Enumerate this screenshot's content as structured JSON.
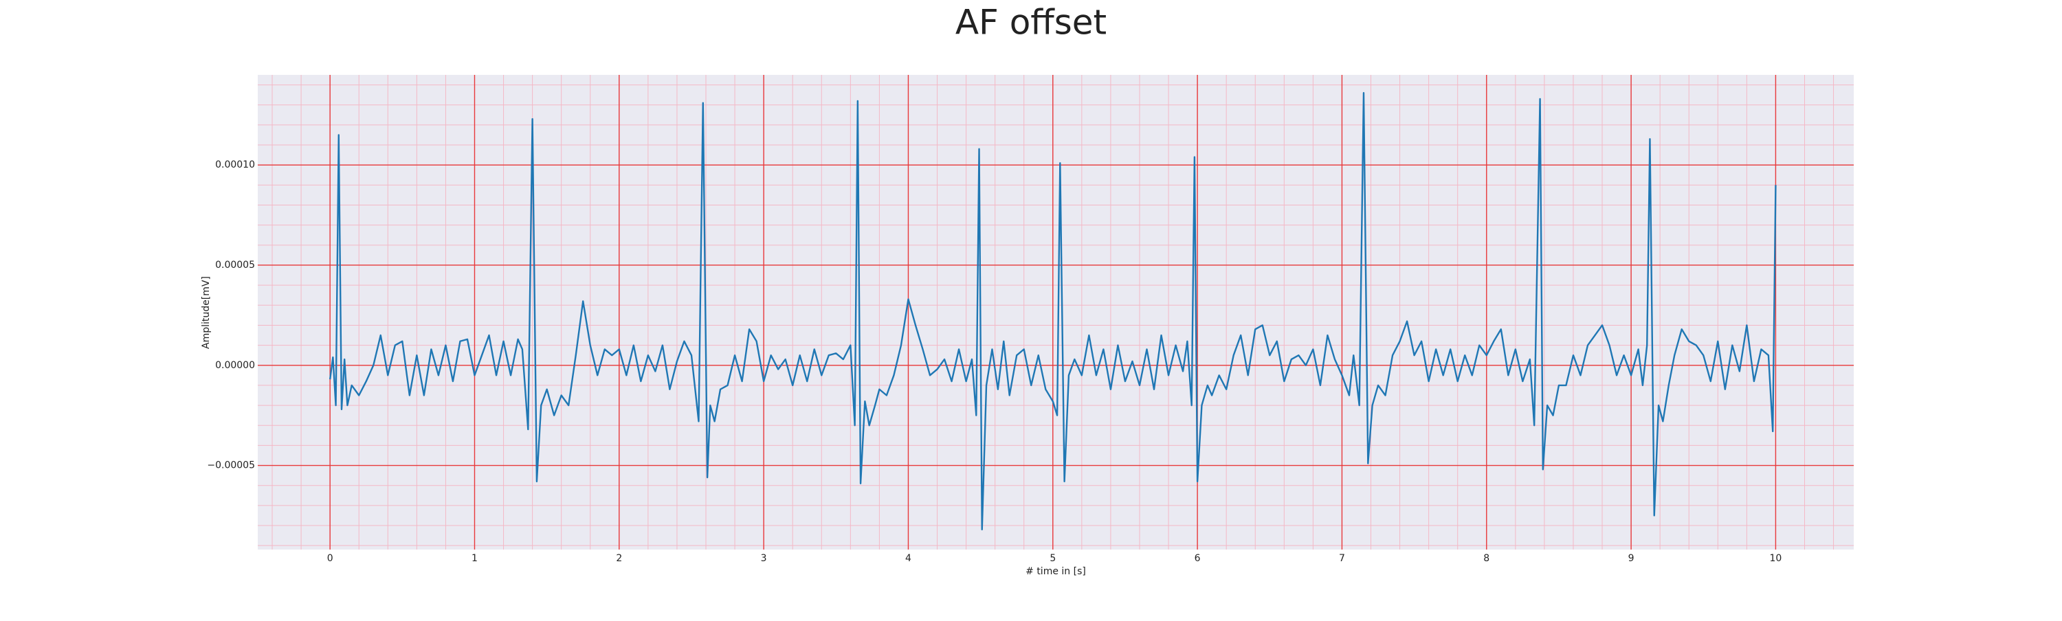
{
  "chart_data": {
    "type": "line",
    "title": "AF offset",
    "x_label": "# time in [s]",
    "y_label": "Amplitude[mV]",
    "x": [
      0,
      0.02,
      0.04,
      0.06,
      0.08,
      0.1,
      0.12,
      0.15,
      0.2,
      0.25,
      0.3,
      0.35,
      0.4,
      0.45,
      0.5,
      0.55,
      0.6,
      0.65,
      0.7,
      0.75,
      0.8,
      0.85,
      0.9,
      0.95,
      1.0,
      1.05,
      1.1,
      1.15,
      1.2,
      1.25,
      1.3,
      1.33,
      1.37,
      1.4,
      1.43,
      1.46,
      1.5,
      1.55,
      1.6,
      1.65,
      1.7,
      1.75,
      1.8,
      1.85,
      1.9,
      1.95,
      2.0,
      2.05,
      2.1,
      2.15,
      2.2,
      2.25,
      2.3,
      2.35,
      2.4,
      2.45,
      2.5,
      2.55,
      2.58,
      2.61,
      2.63,
      2.66,
      2.7,
      2.75,
      2.8,
      2.85,
      2.9,
      2.95,
      3.0,
      3.05,
      3.1,
      3.15,
      3.2,
      3.25,
      3.3,
      3.35,
      3.4,
      3.45,
      3.5,
      3.55,
      3.6,
      3.63,
      3.65,
      3.67,
      3.7,
      3.73,
      3.77,
      3.8,
      3.85,
      3.9,
      3.95,
      4.0,
      4.05,
      4.1,
      4.15,
      4.2,
      4.25,
      4.3,
      4.35,
      4.4,
      4.44,
      4.47,
      4.49,
      4.51,
      4.54,
      4.58,
      4.62,
      4.66,
      4.7,
      4.75,
      4.8,
      4.85,
      4.9,
      4.95,
      5.0,
      5.03,
      5.05,
      5.08,
      5.11,
      5.15,
      5.2,
      5.25,
      5.3,
      5.35,
      5.4,
      5.45,
      5.5,
      5.55,
      5.6,
      5.65,
      5.7,
      5.75,
      5.8,
      5.85,
      5.9,
      5.93,
      5.96,
      5.98,
      6.0,
      6.03,
      6.07,
      6.1,
      6.15,
      6.2,
      6.25,
      6.3,
      6.35,
      6.4,
      6.45,
      6.5,
      6.55,
      6.6,
      6.65,
      6.7,
      6.75,
      6.8,
      6.85,
      6.9,
      6.95,
      7.0,
      7.05,
      7.08,
      7.12,
      7.15,
      7.18,
      7.21,
      7.25,
      7.3,
      7.35,
      7.4,
      7.45,
      7.5,
      7.55,
      7.6,
      7.65,
      7.7,
      7.75,
      7.8,
      7.85,
      7.9,
      7.95,
      8.0,
      8.05,
      8.1,
      8.15,
      8.2,
      8.25,
      8.3,
      8.33,
      8.37,
      8.39,
      8.42,
      8.46,
      8.5,
      8.55,
      8.6,
      8.65,
      8.7,
      8.75,
      8.8,
      8.85,
      8.9,
      8.95,
      9.0,
      9.05,
      9.08,
      9.11,
      9.13,
      9.16,
      9.19,
      9.22,
      9.26,
      9.3,
      9.35,
      9.4,
      9.45,
      9.5,
      9.55,
      9.6,
      9.65,
      9.7,
      9.75,
      9.8,
      9.85,
      9.9,
      9.95,
      9.98,
      10.0
    ],
    "series": [
      {
        "name": "Amplitude",
        "color": "#1f77b4",
        "values": [
          -7e-06,
          4e-06,
          -2e-05,
          0.000115,
          -2.2e-05,
          3e-06,
          -2e-05,
          -1e-05,
          -1.5e-05,
          -8e-06,
          0,
          1.5e-05,
          -5e-06,
          1e-05,
          1.2e-05,
          -1.5e-05,
          5e-06,
          -1.5e-05,
          8e-06,
          -5e-06,
          1e-05,
          -8e-06,
          1.2e-05,
          1.3e-05,
          -5e-06,
          5e-06,
          1.5e-05,
          -5e-06,
          1.2e-05,
          -5e-06,
          1.3e-05,
          8e-06,
          -3.2e-05,
          0.000123,
          -5.8e-05,
          -2e-05,
          -1.2e-05,
          -2.5e-05,
          -1.5e-05,
          -2e-05,
          5e-06,
          3.2e-05,
          1e-05,
          -5e-06,
          8e-06,
          5e-06,
          8e-06,
          -5e-06,
          1e-05,
          -8e-06,
          5e-06,
          -3e-06,
          1e-05,
          -1.2e-05,
          2e-06,
          1.2e-05,
          5e-06,
          -2.8e-05,
          0.000131,
          -5.6e-05,
          -2e-05,
          -2.8e-05,
          -1.2e-05,
          -1e-05,
          5e-06,
          -8e-06,
          1.8e-05,
          1.2e-05,
          -8e-06,
          5e-06,
          -2e-06,
          3e-06,
          -1e-05,
          5e-06,
          -8e-06,
          8e-06,
          -5e-06,
          5e-06,
          6e-06,
          3e-06,
          1e-05,
          -3e-05,
          0.000132,
          -5.9e-05,
          -1.8e-05,
          -3e-05,
          -2e-05,
          -1.2e-05,
          -1.5e-05,
          -5e-06,
          1e-05,
          3.3e-05,
          2e-05,
          8e-06,
          -5e-06,
          -2e-06,
          3e-06,
          -8e-06,
          8e-06,
          -8e-06,
          3e-06,
          -2.5e-05,
          0.000108,
          -8.2e-05,
          -1e-05,
          8e-06,
          -1.2e-05,
          1.2e-05,
          -1.5e-05,
          5e-06,
          8e-06,
          -1e-05,
          5e-06,
          -1.2e-05,
          -1.8e-05,
          -2.5e-05,
          0.000101,
          -5.8e-05,
          -5e-06,
          3e-06,
          -5e-06,
          1.5e-05,
          -5e-06,
          8e-06,
          -1.2e-05,
          1e-05,
          -8e-06,
          2e-06,
          -1e-05,
          8e-06,
          -1.2e-05,
          1.5e-05,
          -5e-06,
          1e-05,
          -3e-06,
          1.2e-05,
          -2e-05,
          0.000104,
          -5.8e-05,
          -2e-05,
          -1e-05,
          -1.5e-05,
          -5e-06,
          -1.2e-05,
          5e-06,
          1.5e-05,
          -5e-06,
          1.8e-05,
          2e-05,
          5e-06,
          1.2e-05,
          -8e-06,
          3e-06,
          5e-06,
          0,
          8e-06,
          -1e-05,
          1.5e-05,
          3e-06,
          -5e-06,
          -1.5e-05,
          5e-06,
          -2e-05,
          0.000136,
          -4.9e-05,
          -2e-05,
          -1e-05,
          -1.5e-05,
          5e-06,
          1.2e-05,
          2.2e-05,
          5e-06,
          1.2e-05,
          -8e-06,
          8e-06,
          -5e-06,
          8e-06,
          -8e-06,
          5e-06,
          -5e-06,
          1e-05,
          5e-06,
          1.2e-05,
          1.8e-05,
          -5e-06,
          8e-06,
          -8e-06,
          3e-06,
          -3e-05,
          0.000133,
          -5.2e-05,
          -2e-05,
          -2.5e-05,
          -1e-05,
          -1e-05,
          5e-06,
          -5e-06,
          1e-05,
          1.5e-05,
          2e-05,
          1e-05,
          -5e-06,
          5e-06,
          -5e-06,
          8e-06,
          -1e-05,
          1e-05,
          0.000113,
          -7.5e-05,
          -2e-05,
          -2.8e-05,
          -1e-05,
          5e-06,
          1.8e-05,
          1.2e-05,
          1e-05,
          5e-06,
          -8e-06,
          1.2e-05,
          -1.2e-05,
          1e-05,
          -3e-06,
          2e-05,
          -8e-06,
          8e-06,
          5e-06,
          -3.3e-05,
          9e-05
        ]
      }
    ],
    "xlim": [
      -0.5,
      10.54
    ],
    "ylim": [
      -9.2e-05,
      0.000145
    ],
    "xticks": [
      0,
      1,
      2,
      3,
      4,
      5,
      6,
      7,
      8,
      9,
      10
    ],
    "yticks": [
      {
        "value": -5e-05,
        "label": "−0.00005"
      },
      {
        "value": 0,
        "label": "0.00000"
      },
      {
        "value": 5e-05,
        "label": "0.00005"
      },
      {
        "value": 0.0001,
        "label": "0.00010"
      }
    ],
    "grid": true,
    "minor_grid": true,
    "grid_color": "#e8393b",
    "minor_grid_color": "#f4b8c6",
    "background": "#eaeaf2"
  }
}
